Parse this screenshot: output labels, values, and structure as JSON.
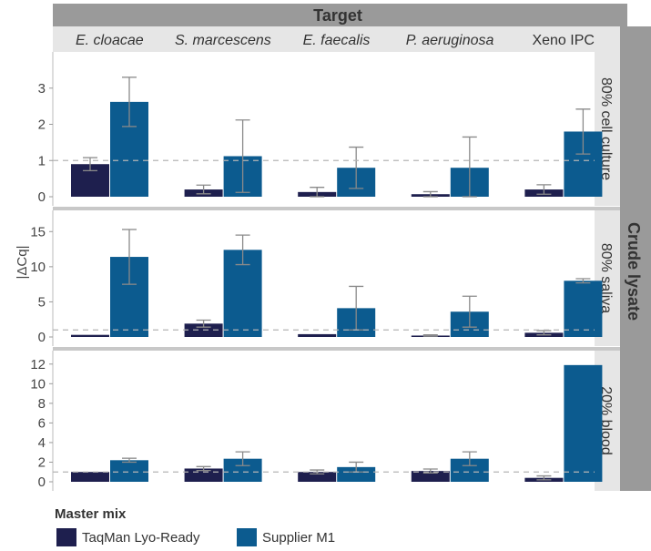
{
  "chart_data": {
    "type": "bar",
    "title": "Target",
    "xlabel": "",
    "ylabel": "|ΔCq|",
    "categories": [
      "E. cloacae",
      "S. marcescens",
      "E. faecalis",
      "P. aeruginosa",
      "Xeno IPC"
    ],
    "category_italic": [
      true,
      true,
      true,
      true,
      false
    ],
    "row_group_label": "Crude lysate",
    "reference_line": 1,
    "colors": {
      "TaqMan Lyo-Ready": "#1e1f4e",
      "Supplier M1": "#0c5b8f"
    },
    "panels": [
      {
        "label": "80% cell culture",
        "ylim": [
          0,
          3.9
        ],
        "yticks": [
          0,
          1,
          2,
          3
        ],
        "series": [
          {
            "name": "TaqMan Lyo-Ready",
            "values": [
              0.9,
              0.2,
              0.13,
              0.07,
              0.2
            ],
            "errors": [
              0.18,
              0.12,
              0.13,
              0.07,
              0.13
            ]
          },
          {
            "name": "Supplier M1",
            "values": [
              2.62,
              1.12,
              0.8,
              0.8,
              1.8
            ],
            "errors": [
              0.68,
              1.0,
              0.57,
              0.85,
              0.62
            ]
          }
        ]
      },
      {
        "label": "80% saliva",
        "ylim": [
          0,
          17.5
        ],
        "yticks": [
          0,
          5,
          10,
          15
        ],
        "series": [
          {
            "name": "TaqMan Lyo-Ready",
            "values": [
              0.3,
              1.9,
              0.4,
              0.2,
              0.6
            ],
            "errors": [
              0.0,
              0.5,
              0.0,
              0.1,
              0.3
            ]
          },
          {
            "name": "Supplier M1",
            "values": [
              11.4,
              12.4,
              4.1,
              3.6,
              8.0
            ],
            "errors": [
              3.9,
              2.1,
              3.1,
              2.2,
              0.3
            ]
          }
        ]
      },
      {
        "label": "20% blood",
        "ylim": [
          0,
          13
        ],
        "yticks": [
          0,
          2,
          4,
          6,
          8,
          10,
          12
        ],
        "series": [
          {
            "name": "TaqMan Lyo-Ready",
            "values": [
              1.0,
              1.35,
              1.0,
              1.1,
              0.4
            ],
            "errors": [
              0.0,
              0.2,
              0.2,
              0.2,
              0.2
            ]
          },
          {
            "name": "Supplier M1",
            "values": [
              2.2,
              2.35,
              1.5,
              2.35,
              11.9
            ],
            "errors": [
              0.2,
              0.7,
              0.5,
              0.7,
              0.0
            ]
          }
        ]
      }
    ]
  },
  "legend": {
    "title": "Master mix",
    "items": [
      "TaqMan Lyo-Ready",
      "Supplier M1"
    ]
  }
}
